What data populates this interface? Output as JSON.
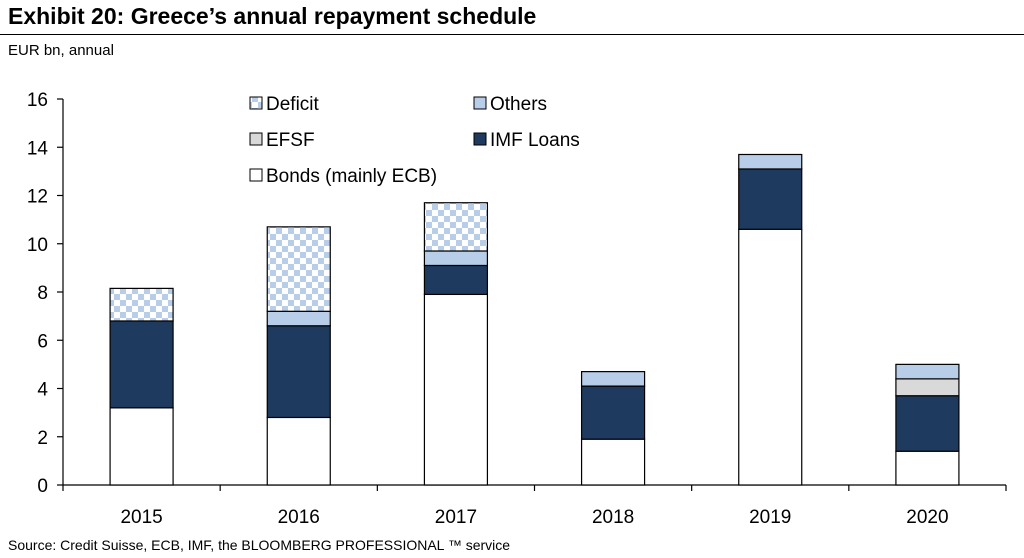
{
  "title": "Exhibit 20: Greece’s annual repayment schedule",
  "subtitle": "EUR bn, annual",
  "source": "Source: Credit Suisse, ECB, IMF, the BLOOMBERG PROFESSIONAL ™ service",
  "chart_data": {
    "type": "bar",
    "stacked": true,
    "categories": [
      "2015",
      "2016",
      "2017",
      "2018",
      "2019",
      "2020"
    ],
    "ylim": [
      0,
      16
    ],
    "yticks": [
      0,
      2,
      4,
      6,
      8,
      10,
      12,
      14,
      16
    ],
    "grid": false,
    "legend_position": "top-center",
    "legend": [
      "Deficit",
      "Others",
      "EFSF",
      "IMF Loans",
      "Bonds (mainly ECB)"
    ],
    "series": [
      {
        "name": "Bonds (mainly ECB)",
        "color": "#ffffff",
        "values": [
          3.2,
          2.8,
          7.9,
          1.9,
          10.6,
          1.4
        ]
      },
      {
        "name": "IMF Loans",
        "color": "#1f3a5f",
        "values": [
          3.6,
          3.8,
          1.2,
          2.2,
          2.5,
          2.3
        ]
      },
      {
        "name": "EFSF",
        "color": "#d9d9d9",
        "values": [
          0,
          0,
          0,
          0,
          0,
          0.7
        ]
      },
      {
        "name": "Others",
        "color": "#b7cde8",
        "values": [
          0,
          0.6,
          0.6,
          0.6,
          0.6,
          0.6
        ]
      },
      {
        "name": "Deficit",
        "color": "checkered",
        "values": [
          1.35,
          3.5,
          2.0,
          0,
          0,
          0
        ]
      }
    ]
  }
}
